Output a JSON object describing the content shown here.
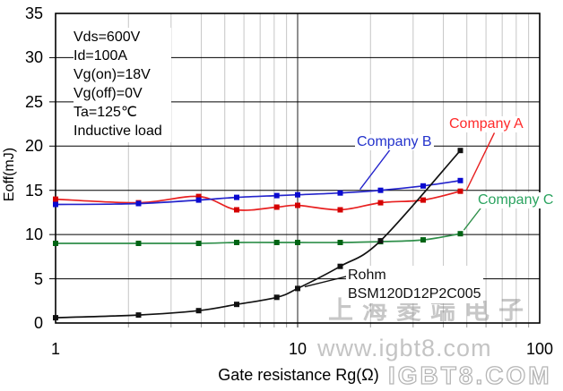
{
  "watermarks": {
    "cn": "上海菱端电子",
    "url": "www.igbt8.com",
    "brand": "IGBT8.COM"
  },
  "chart_data": {
    "type": "line",
    "x_scale": "log",
    "xlabel": "Gate resistance Rg(Ω)",
    "ylabel": "Eoff(mJ)",
    "xlim": [
      1,
      100
    ],
    "ylim": [
      0,
      35
    ],
    "grid": true,
    "minor_grid_color": "#c6c6c6",
    "axis_color": "#000000",
    "y_ticks": [
      "35",
      "30",
      "25",
      "20",
      "15",
      "10",
      "5",
      "0"
    ],
    "x_ticks": [
      "1",
      "10",
      "100"
    ],
    "conditions": [
      "Vds=600V",
      "Id=100A",
      "Vg(on)=18V",
      "Vg(off)=0V",
      "Ta=125℃",
      "Inductive load"
    ],
    "x": [
      1,
      2.2,
      3.9,
      5.6,
      8.2,
      10,
      15,
      22,
      33,
      47
    ],
    "series": [
      {
        "name": "Company A",
        "color": "#e82020",
        "marker_color": "#d40000",
        "label_color": "#ff2a2a",
        "values": [
          14.0,
          13.6,
          14.3,
          12.8,
          13.1,
          13.3,
          12.8,
          13.6,
          13.9,
          14.9
        ],
        "leader": [
          [
            65,
            21.5
          ],
          [
            49.8,
            15.0
          ]
        ]
      },
      {
        "name": "Company B",
        "color": "#2424cc",
        "marker_color": "#0a0ad0",
        "label_color": "#2433cc",
        "values": [
          13.4,
          13.5,
          13.9,
          14.2,
          14.4,
          14.5,
          14.7,
          15.0,
          15.5,
          16.1
        ],
        "leader": [
          [
            24.1,
            19.6
          ],
          [
            18.1,
            15.1
          ]
        ]
      },
      {
        "name": "Company C",
        "color": "#2f8f4a",
        "marker_color": "#006414",
        "label_color": "#2aa35f",
        "values": [
          9.0,
          9.0,
          9.0,
          9.1,
          9.1,
          9.1,
          9.1,
          9.2,
          9.4,
          10.1
        ],
        "leader": [
          [
            57.5,
            13.1
          ],
          [
            48.6,
            10.5
          ]
        ]
      },
      {
        "name": "Rohm BSM120D12P2C005",
        "name_line1": "Rohm",
        "name_line2": "BSM120D12P2C005",
        "color": "#111111",
        "marker_color": "#111111",
        "label_color": "#111111",
        "values": [
          0.6,
          0.9,
          1.4,
          2.1,
          2.9,
          3.9,
          6.4,
          9.3,
          null,
          19.5
        ],
        "leader": [
          [
            16.1,
            5.3
          ],
          [
            10.7,
            4.1
          ]
        ]
      }
    ]
  }
}
